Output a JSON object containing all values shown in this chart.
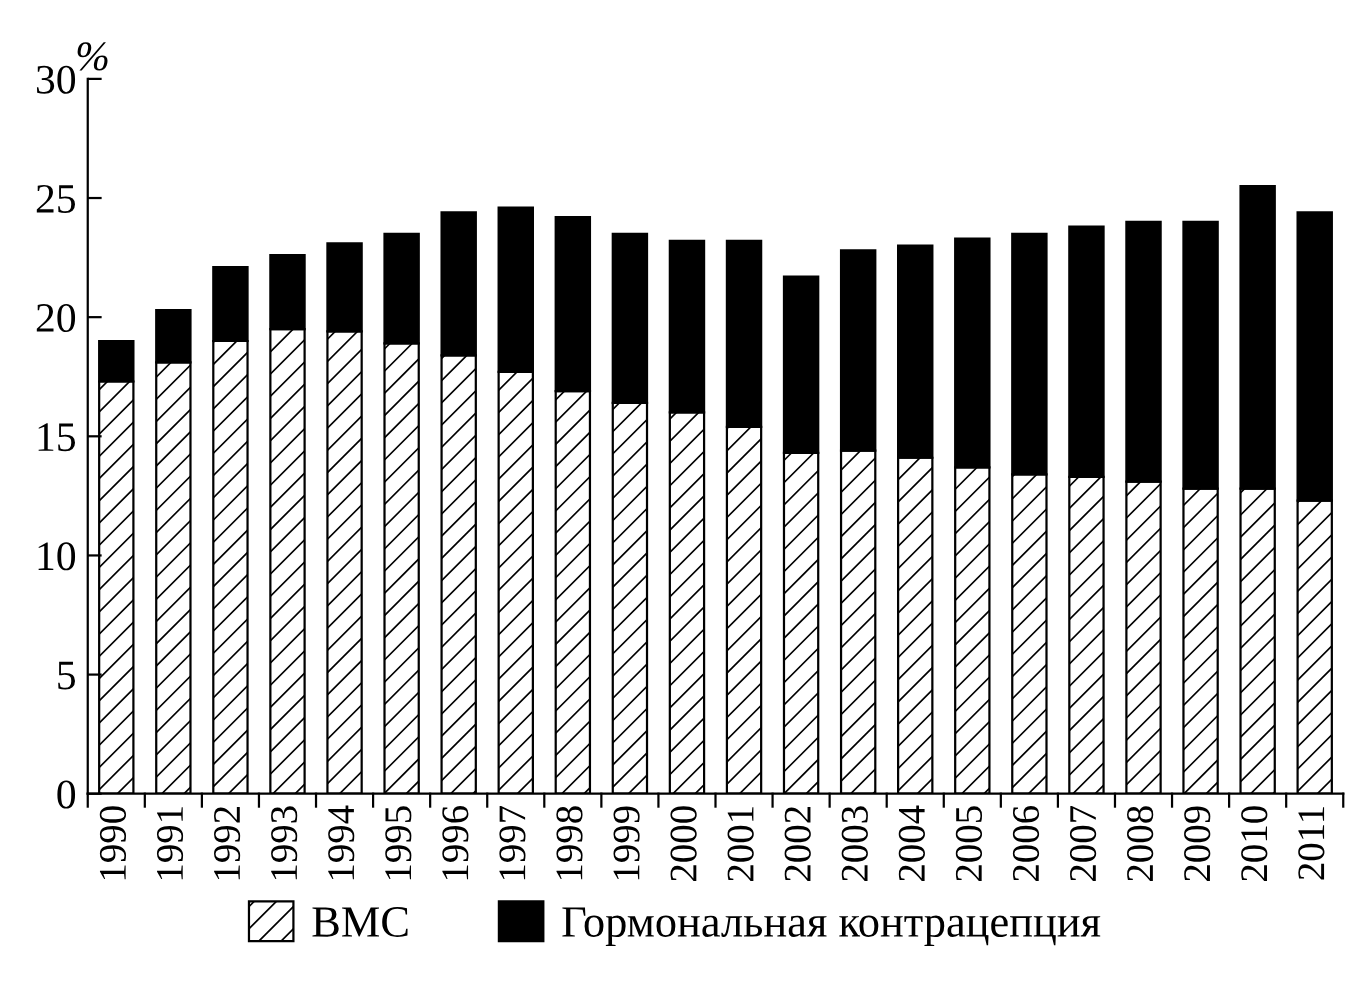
{
  "chart_data": {
    "type": "bar",
    "stacked": true,
    "ylabel": "%",
    "categories": [
      "1990",
      "1991",
      "1992",
      "1993",
      "1994",
      "1995",
      "1996",
      "1997",
      "1998",
      "1999",
      "2000",
      "2001",
      "2002",
      "2003",
      "2004",
      "2005",
      "2006",
      "2007",
      "2008",
      "2009",
      "2010",
      "2011"
    ],
    "series": [
      {
        "name": "ВМС",
        "color": "#ffffff",
        "values": [
          17.3,
          18.1,
          19.0,
          19.5,
          19.4,
          18.9,
          18.4,
          17.7,
          16.9,
          16.4,
          16.0,
          15.4,
          14.3,
          14.4,
          14.1,
          13.7,
          13.4,
          13.3,
          13.1,
          12.8,
          12.8,
          12.3
        ]
      },
      {
        "name": "Гормональная контрацепция",
        "color": "#000000",
        "values": [
          1.7,
          2.2,
          3.1,
          3.1,
          3.7,
          4.6,
          6.0,
          6.9,
          7.3,
          7.1,
          7.2,
          7.8,
          7.4,
          8.4,
          8.9,
          9.6,
          10.1,
          10.5,
          10.9,
          11.2,
          12.7,
          12.1
        ]
      }
    ],
    "ylim": [
      0,
      30
    ],
    "yticks": [
      0,
      5,
      10,
      15,
      20,
      25,
      30
    ],
    "grid": false,
    "legend": "bottom"
  }
}
